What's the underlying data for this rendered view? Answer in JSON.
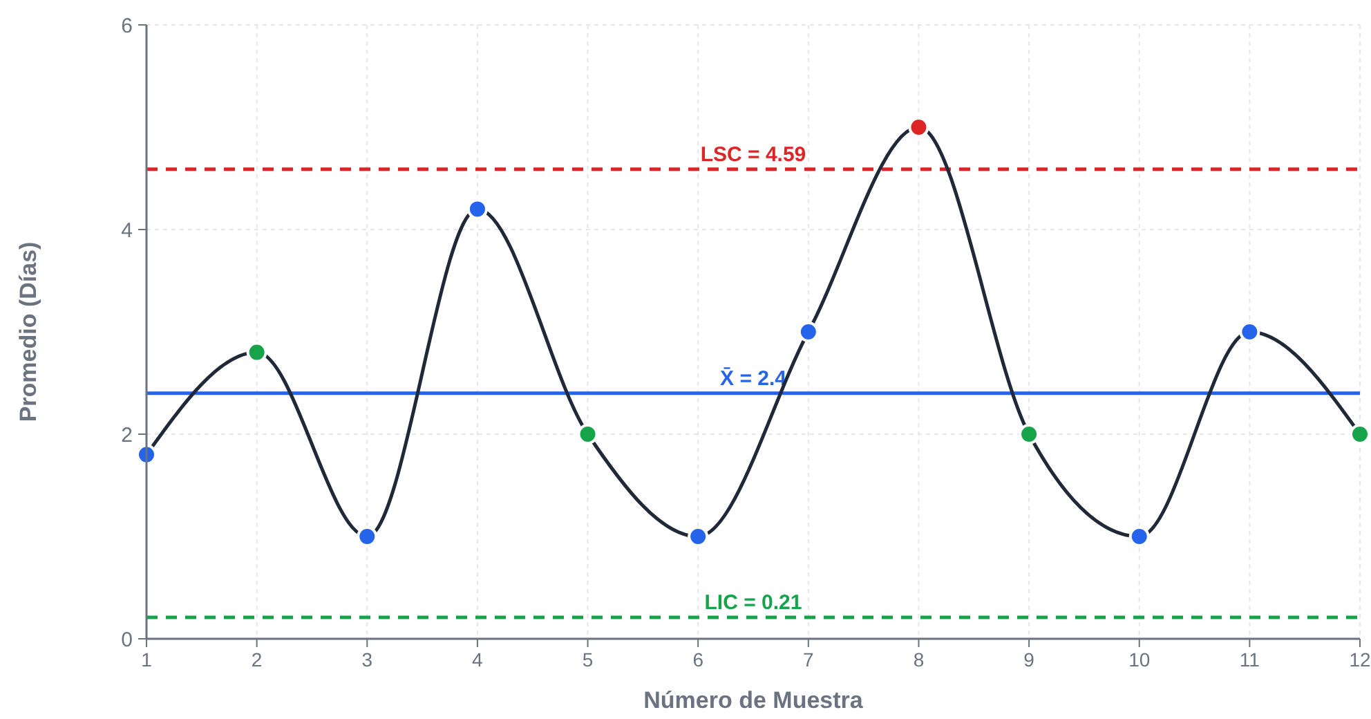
{
  "chart_data": {
    "type": "line",
    "xlabel": "Número de Muestra",
    "ylabel": "Promedio (Días)",
    "x": [
      1,
      2,
      3,
      4,
      5,
      6,
      7,
      8,
      9,
      10,
      11,
      12
    ],
    "series": [
      {
        "color": "#1f2937",
        "values": [
          1.8,
          2.8,
          1,
          4.2,
          2,
          1,
          3,
          5,
          2,
          1,
          3,
          2
        ],
        "colors": [
          "#2563eb",
          "#16a34a",
          "#2563eb",
          "#2563eb",
          "#16a34a",
          "#2563eb",
          "#2563eb",
          "#dc2626",
          "#16a34a",
          "#2563eb",
          "#2563eb",
          "#16a34a"
        ]
      }
    ],
    "xlim": [
      1,
      12
    ],
    "xticks": [
      1,
      2,
      3,
      4,
      5,
      6,
      7,
      8,
      9,
      10,
      11,
      12
    ],
    "ylim": [
      0,
      6
    ],
    "yticks": [
      0,
      2,
      4,
      6
    ],
    "grid": true,
    "marker": "circle",
    "line_style": "solid",
    "ref_lines": [
      {
        "axis": "y",
        "value": 4.59,
        "label": "LSC = 4.59",
        "color": "#dc2626",
        "line_style": "dashed"
      },
      {
        "axis": "y",
        "value": 2.4,
        "label": "X̄ = 2.4",
        "color": "#2563eb",
        "line_style": "solid"
      },
      {
        "axis": "y",
        "value": 0.21,
        "label": "LIC = 0.21",
        "color": "#16a34a",
        "line_style": "dashed"
      }
    ]
  }
}
